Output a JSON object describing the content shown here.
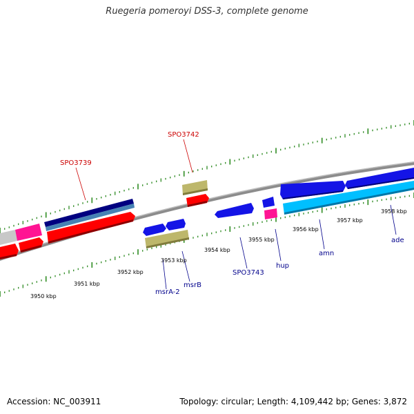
{
  "title": "Ruegeria pomeroyi DSS-3, complete genome",
  "footer": {
    "accession": "Accession: NC_003911",
    "topology": "Topology: circular; Length: 4,109,442 bp; Genes: 3,872"
  },
  "colors": {
    "backbone": "#8c8c8c",
    "ticks": "#2e8b22",
    "label_red": "#cc0000",
    "label_blue": "#00008b"
  },
  "scale_labels": [
    "3950 kbp",
    "3951 kbp",
    "3952 kbp",
    "3953 kbp",
    "3954 kbp",
    "3955 kbp",
    "3956 kbp",
    "3957 kbp",
    "3958 kbp"
  ],
  "gene_labels": [
    {
      "text": "SPO3739",
      "color": "#cc0000"
    },
    {
      "text": "SPO3742",
      "color": "#cc0000"
    },
    {
      "text": "msrA-2",
      "color": "#00008b"
    },
    {
      "text": "msrB",
      "color": "#00008b"
    },
    {
      "text": "SPO3743",
      "color": "#00008b"
    },
    {
      "text": "hup",
      "color": "#00008b"
    },
    {
      "text": "amn",
      "color": "#00008b"
    },
    {
      "text": "ade",
      "color": "#00008b"
    }
  ]
}
